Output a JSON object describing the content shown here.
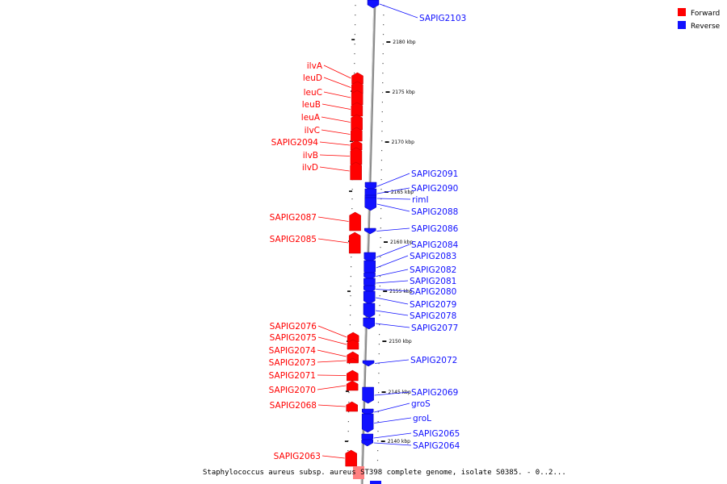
{
  "caption": "Staphylococcus aureus subsp. aureus ST398 complete genome, isolate S0385. - 0..2...",
  "legend": [
    {
      "label": "Forward",
      "color": "#ff0000"
    },
    {
      "label": "Reverse",
      "color": "#1111ff"
    }
  ],
  "scale_ticks": [
    "2180 kbp",
    "2175 kbp",
    "2170 kbp",
    "2165 kbp",
    "2160 kbp",
    "2155 kbp",
    "2150 kbp",
    "2145 kbp",
    "2140 kbp"
  ],
  "forward_genes": [
    "ilvA",
    "leuD",
    "leuC",
    "leuB",
    "leuA",
    "ilvC",
    "SAPIG2094",
    "ilvB",
    "ilvD",
    "SAPIG2087",
    "SAPIG2085",
    "SAPIG2076",
    "SAPIG2075",
    "SAPIG2074",
    "SAPIG2073",
    "SAPIG2071",
    "SAPIG2070",
    "SAPIG2068",
    "SAPIG2063"
  ],
  "reverse_genes": [
    "SAPIG2103",
    "SAPIG2091",
    "SAPIG2090",
    "rimI",
    "SAPIG2088",
    "SAPIG2086",
    "SAPIG2084",
    "SAPIG2083",
    "SAPIG2082",
    "SAPIG2081",
    "SAPIG2080",
    "SAPIG2079",
    "SAPIG2078",
    "SAPIG2077",
    "SAPIG2072",
    "SAPIG2069",
    "groS",
    "groL",
    "SAPIG2065",
    "SAPIG2064"
  ]
}
